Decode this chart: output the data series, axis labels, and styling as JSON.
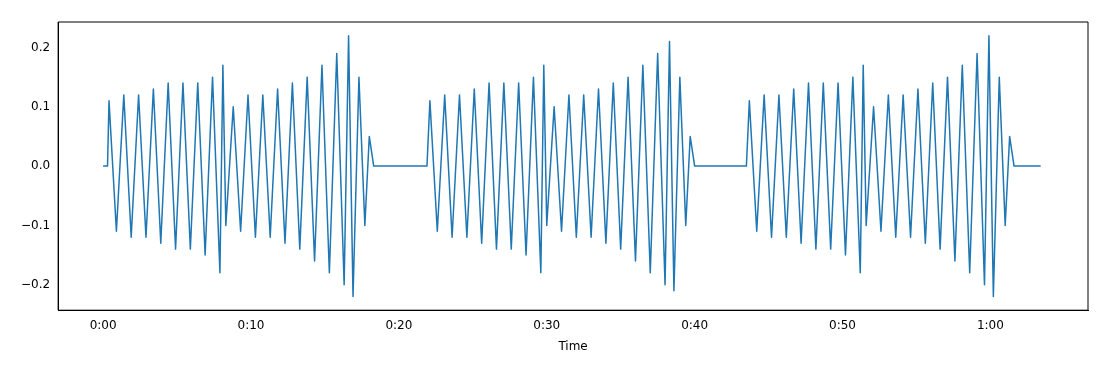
{
  "chart_data": {
    "type": "line",
    "xlabel": "Time",
    "grid": false,
    "legend": false,
    "marker": "none",
    "line_style": "solid",
    "xlim": [
      -3.04,
      66.6
    ],
    "ylim": [
      -0.243,
      0.243
    ],
    "xticks": [
      {
        "value": 0,
        "label": "0:00"
      },
      {
        "value": 10,
        "label": "0:10"
      },
      {
        "value": 20,
        "label": "0:20"
      },
      {
        "value": 30,
        "label": "0:30"
      },
      {
        "value": 40,
        "label": "0:40"
      },
      {
        "value": 50,
        "label": "0:50"
      },
      {
        "value": 60,
        "label": "1:00"
      }
    ],
    "yticks": [
      {
        "value": -0.2,
        "label": "−0.2"
      },
      {
        "value": -0.1,
        "label": "−0.1"
      },
      {
        "value": 0,
        "label": "0.0"
      },
      {
        "value": 0.1,
        "label": "0.1"
      },
      {
        "value": 0.2,
        "label": "0.2"
      }
    ],
    "series": [
      {
        "color": "#1f77b4",
        "x": [
          0,
          0.3,
          0.4,
          0.9,
          1.4,
          1.9,
          2.4,
          2.9,
          3.4,
          3.9,
          4.4,
          4.9,
          5.4,
          5.9,
          6.4,
          6.9,
          7.4,
          7.9,
          8.1,
          8.3,
          8.8,
          9.3,
          9.8,
          10.3,
          10.8,
          11.3,
          11.8,
          12.3,
          12.8,
          13.3,
          13.8,
          14.3,
          14.8,
          15.3,
          15.8,
          16.3,
          16.6,
          16.9,
          17.3,
          17.7,
          18.0,
          18.3,
          21.9,
          22.1,
          22.6,
          23.1,
          23.6,
          24.1,
          24.6,
          25.1,
          25.6,
          26.1,
          26.6,
          27.1,
          27.6,
          28.1,
          28.6,
          29.1,
          29.6,
          29.8,
          30.0,
          30.5,
          31.0,
          31.5,
          32.0,
          32.5,
          33.0,
          33.5,
          34.0,
          34.5,
          35.0,
          35.5,
          36.0,
          36.5,
          37.0,
          37.5,
          38.0,
          38.3,
          38.6,
          39.0,
          39.4,
          39.7,
          40.0,
          43.5,
          43.7,
          44.2,
          44.7,
          45.2,
          45.7,
          46.2,
          46.7,
          47.2,
          47.7,
          48.2,
          48.7,
          49.2,
          49.7,
          50.2,
          50.7,
          51.2,
          51.4,
          51.6,
          52.1,
          52.6,
          53.1,
          53.6,
          54.1,
          54.6,
          55.1,
          55.6,
          56.1,
          56.6,
          57.1,
          57.6,
          58.1,
          58.6,
          59.1,
          59.6,
          59.9,
          60.2,
          60.6,
          61.0,
          61.3,
          61.6,
          63.4
        ],
        "values": [
          0,
          0,
          0.11,
          -0.11,
          0.12,
          -0.12,
          0.12,
          -0.12,
          0.13,
          -0.13,
          0.14,
          -0.14,
          0.14,
          -0.14,
          0.14,
          -0.15,
          0.15,
          -0.18,
          0.17,
          -0.1,
          0.1,
          -0.11,
          0.12,
          -0.12,
          0.12,
          -0.12,
          0.13,
          -0.13,
          0.14,
          -0.14,
          0.15,
          -0.16,
          0.17,
          -0.18,
          0.19,
          -0.2,
          0.22,
          -0.22,
          0.15,
          -0.1,
          0.05,
          0,
          0,
          0.11,
          -0.11,
          0.12,
          -0.12,
          0.12,
          -0.12,
          0.13,
          -0.13,
          0.14,
          -0.14,
          0.14,
          -0.14,
          0.14,
          -0.15,
          0.15,
          -0.18,
          0.17,
          -0.1,
          0.1,
          -0.11,
          0.12,
          -0.12,
          0.12,
          -0.12,
          0.13,
          -0.13,
          0.14,
          -0.14,
          0.15,
          -0.16,
          0.17,
          -0.18,
          0.19,
          -0.2,
          0.21,
          -0.21,
          0.15,
          -0.1,
          0.05,
          0,
          0,
          0.11,
          -0.11,
          0.12,
          -0.12,
          0.12,
          -0.12,
          0.13,
          -0.13,
          0.14,
          -0.14,
          0.14,
          -0.14,
          0.14,
          -0.15,
          0.15,
          -0.18,
          0.17,
          -0.1,
          0.1,
          -0.11,
          0.12,
          -0.12,
          0.12,
          -0.12,
          0.13,
          -0.13,
          0.14,
          -0.14,
          0.15,
          -0.16,
          0.17,
          -0.18,
          0.19,
          -0.2,
          0.22,
          -0.22,
          0.15,
          -0.1,
          0.05,
          0,
          0
        ]
      }
    ]
  }
}
